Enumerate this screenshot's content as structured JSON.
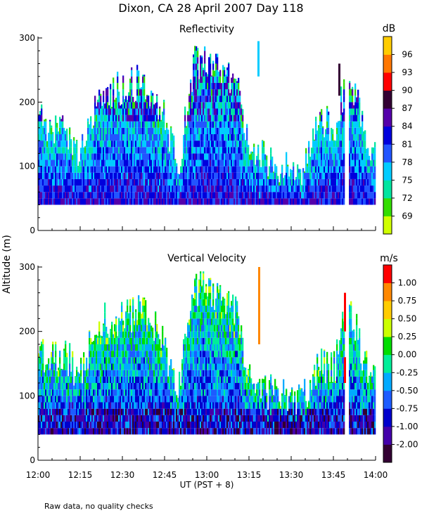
{
  "title": "Dixon, CA 28 April 2007  Day 118",
  "ylabel": "Altitude (m)",
  "xlabel": "UT  (PST + 8)",
  "xticks": [
    "12:00",
    "12:15",
    "12:30",
    "12:45",
    "13:00",
    "13:15",
    "13:30",
    "13:45",
    "14:00"
  ],
  "footnote": "Raw data, no quality checks",
  "colors": {
    "reflectivity_scale": [
      "#d0ff00",
      "#33dd00",
      "#00e5a0",
      "#00ccff",
      "#2255ff",
      "#0000dd",
      "#5500aa",
      "#330033",
      "#ff0000",
      "#ff7700",
      "#ffcc00"
    ],
    "velocity_scale": [
      "#330033",
      "#4400aa",
      "#0000cc",
      "#1d5cff",
      "#00aaff",
      "#00ee99",
      "#00dd00",
      "#ccff00",
      "#ffcc00",
      "#ff8800",
      "#ff0000"
    ]
  },
  "chart_data": [
    {
      "type": "heatmap",
      "title": "Reflectivity",
      "units": "dB",
      "xlabel": "UT  (PST + 8)",
      "ylabel": "Altitude (m)",
      "xlim": [
        "12:00",
        "14:00"
      ],
      "ylim": [
        0,
        300
      ],
      "yticks": [
        0,
        100,
        200,
        300
      ],
      "colorbar_ticks": [
        "69",
        "72",
        "75",
        "78",
        "81",
        "84",
        "87",
        "90",
        "93",
        "96"
      ],
      "profile": {
        "times_min": [
          0,
          5,
          10,
          15,
          20,
          25,
          30,
          35,
          40,
          45,
          50,
          55,
          60,
          65,
          70,
          75,
          80,
          85,
          90,
          95,
          100,
          105,
          110,
          115,
          120
        ],
        "max_height_m": [
          170,
          160,
          160,
          120,
          200,
          220,
          220,
          230,
          220,
          170,
          110,
          260,
          260,
          240,
          230,
          120,
          110,
          100,
          100,
          100,
          190,
          140,
          260,
          170,
          110
        ],
        "base_height_m": 40
      }
    },
    {
      "type": "heatmap",
      "title": "Vertical Velocity",
      "units": "m/s",
      "xlabel": "UT  (PST + 8)",
      "ylabel": "Altitude (m)",
      "xlim": [
        "12:00",
        "14:00"
      ],
      "ylim": [
        0,
        300
      ],
      "yticks": [
        0,
        100,
        200,
        300
      ],
      "colorbar_ticks": [
        "-2.00",
        "-1.00",
        "-0.75",
        "-0.50",
        "-0.25",
        "0.00",
        "0.25",
        "0.50",
        "0.75",
        "1.00"
      ],
      "profile": {
        "times_min": [
          0,
          5,
          10,
          15,
          20,
          25,
          30,
          35,
          40,
          45,
          50,
          55,
          60,
          65,
          70,
          75,
          80,
          85,
          90,
          95,
          100,
          105,
          110,
          115,
          120
        ],
        "max_height_m": [
          170,
          160,
          160,
          130,
          210,
          220,
          220,
          230,
          220,
          170,
          120,
          260,
          270,
          240,
          230,
          120,
          110,
          100,
          100,
          100,
          150,
          140,
          260,
          160,
          120
        ],
        "base_height_m": 40
      }
    }
  ]
}
